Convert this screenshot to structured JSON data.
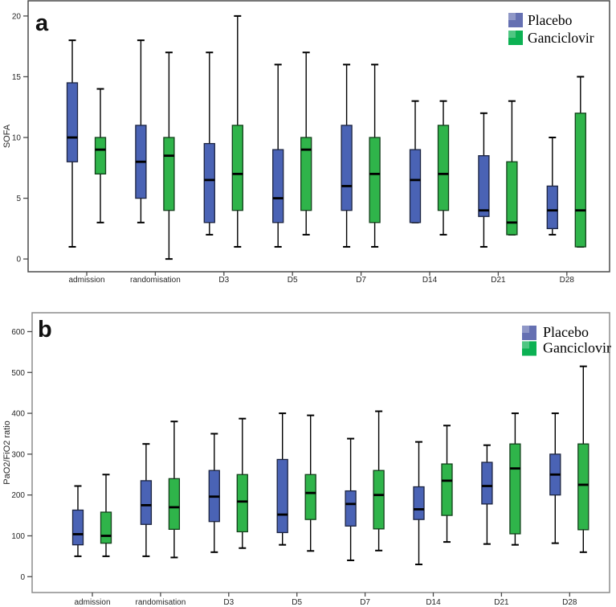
{
  "figure": {
    "background": "#ffffff",
    "accent_blue": "#4a63b5",
    "accent_green": "#2fb44a"
  },
  "legend": {
    "position": "top-right",
    "items": [
      {
        "label": "Placebo",
        "swatch_color": "#6570b2"
      },
      {
        "label": "Ganciclovir",
        "swatch_color": "#0cb153"
      }
    ]
  },
  "chart_data": [
    {
      "type": "boxplot",
      "panel_label": "a",
      "ylabel": "SOFA",
      "ylim": [
        -1.05,
        21.25
      ],
      "yticks": [
        0,
        5,
        10,
        15,
        20
      ],
      "grid": false,
      "legend_position": "top-right",
      "categories": [
        "admission",
        "randomisation",
        "D3",
        "D5",
        "D7",
        "D14",
        "D21",
        "D28"
      ],
      "series": [
        {
          "name": "Placebo",
          "box_fill": "#4a63b5",
          "box_stroke": "#1c2440",
          "legend_fill": "#6570b2",
          "boxes": [
            {
              "min": 1,
              "q1": 8,
              "median": 10,
              "q3": 14.5,
              "max": 18
            },
            {
              "min": 3,
              "q1": 5,
              "median": 8,
              "q3": 11,
              "max": 18
            },
            {
              "min": 2,
              "q1": 3,
              "median": 6.5,
              "q3": 9.5,
              "max": 17
            },
            {
              "min": 1,
              "q1": 3,
              "median": 5,
              "q3": 9,
              "max": 16
            },
            {
              "min": 1,
              "q1": 4,
              "median": 6,
              "q3": 11,
              "max": 16
            },
            {
              "min": 3,
              "q1": 3,
              "median": 6.5,
              "q3": 9,
              "max": 13
            },
            {
              "min": 1,
              "q1": 3.5,
              "median": 4,
              "q3": 8.5,
              "max": 12
            },
            {
              "min": 2,
              "q1": 2.5,
              "median": 4,
              "q3": 6,
              "max": 10
            }
          ]
        },
        {
          "name": "Ganciclovir",
          "box_fill": "#2fb44a",
          "box_stroke": "#123f1a",
          "legend_fill": "#0cb153",
          "boxes": [
            {
              "min": 3,
              "q1": 7,
              "median": 9,
              "q3": 10,
              "max": 14
            },
            {
              "min": 0,
              "q1": 4,
              "median": 8.5,
              "q3": 10,
              "max": 17
            },
            {
              "min": 1,
              "q1": 4,
              "median": 7,
              "q3": 11,
              "max": 20
            },
            {
              "min": 2,
              "q1": 4,
              "median": 9,
              "q3": 10,
              "max": 17
            },
            {
              "min": 1,
              "q1": 3,
              "median": 7,
              "q3": 10,
              "max": 16
            },
            {
              "min": 2,
              "q1": 4,
              "median": 7,
              "q3": 11,
              "max": 13
            },
            {
              "min": 2,
              "q1": 2,
              "median": 3,
              "q3": 8,
              "max": 13
            },
            {
              "min": 1,
              "q1": 1,
              "median": 4,
              "q3": 12,
              "max": 15
            }
          ]
        }
      ]
    },
    {
      "type": "boxplot",
      "panel_label": "b",
      "ylabel": "PaO2/FiO2 ratio",
      "ylim": [
        -38.8,
        646.2
      ],
      "yticks": [
        0,
        100,
        200,
        300,
        400,
        500,
        600
      ],
      "grid": false,
      "legend_position": "top-right",
      "categories": [
        "admission",
        "randomisation",
        "D3",
        "D5",
        "D7",
        "D14",
        "D21",
        "D28"
      ],
      "series": [
        {
          "name": "Placebo",
          "box_fill": "#4a63b5",
          "box_stroke": "#1c2440",
          "legend_fill": "#6570b2",
          "boxes": [
            {
              "min": 50,
              "q1": 78,
              "median": 104,
              "q3": 163,
              "max": 222
            },
            {
              "min": 50,
              "q1": 128,
              "median": 175,
              "q3": 235,
              "max": 325
            },
            {
              "min": 60,
              "q1": 135,
              "median": 196,
              "q3": 260,
              "max": 350
            },
            {
              "min": 78,
              "q1": 108,
              "median": 152,
              "q3": 287,
              "max": 400
            },
            {
              "min": 40,
              "q1": 124,
              "median": 178,
              "q3": 210,
              "max": 338
            },
            {
              "min": 30,
              "q1": 140,
              "median": 165,
              "q3": 220,
              "max": 330
            },
            {
              "min": 80,
              "q1": 178,
              "median": 222,
              "q3": 280,
              "max": 322
            },
            {
              "min": 82,
              "q1": 200,
              "median": 250,
              "q3": 300,
              "max": 400
            }
          ]
        },
        {
          "name": "Ganciclovir",
          "box_fill": "#2fb44a",
          "box_stroke": "#123f1a",
          "legend_fill": "#0cb153",
          "boxes": [
            {
              "min": 50,
              "q1": 82,
              "median": 100,
              "q3": 158,
              "max": 250
            },
            {
              "min": 47,
              "q1": 116,
              "median": 170,
              "q3": 240,
              "max": 380
            },
            {
              "min": 70,
              "q1": 110,
              "median": 184,
              "q3": 250,
              "max": 387
            },
            {
              "min": 63,
              "q1": 140,
              "median": 205,
              "q3": 250,
              "max": 395
            },
            {
              "min": 64,
              "q1": 117,
              "median": 200,
              "q3": 260,
              "max": 405
            },
            {
              "min": 85,
              "q1": 150,
              "median": 235,
              "q3": 276,
              "max": 370
            },
            {
              "min": 78,
              "q1": 105,
              "median": 265,
              "q3": 325,
              "max": 400
            },
            {
              "min": 60,
              "q1": 115,
              "median": 225,
              "q3": 325,
              "max": 515
            }
          ]
        }
      ]
    }
  ]
}
